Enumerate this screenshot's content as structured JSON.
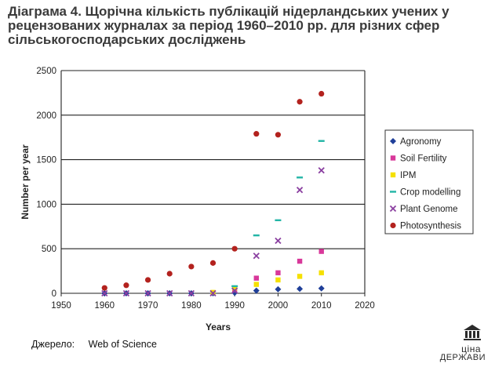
{
  "header": {
    "title_line1": "Діаграма 4. Щорічна кількість публікацій нідерландських учених  у",
    "title_line2": "рецензованих журналах за період 1960–2010 рр. для різних сфер",
    "title_line3": "сільськогосподарських досліджень"
  },
  "footer": {
    "source_label": "Джерело:",
    "source_value": "Web of Science"
  },
  "brand": {
    "word1": "ціна",
    "word2": "ДЕРЖАВИ",
    "icon": "building-icon"
  },
  "chart_data": {
    "type": "scatter",
    "xlabel": "Years",
    "ylabel": "Number per year",
    "xlim": [
      1950,
      2020
    ],
    "ylim": [
      0,
      2500
    ],
    "xticks": [
      1950,
      1960,
      1970,
      1980,
      1990,
      2000,
      2010,
      2020
    ],
    "yticks": [
      0,
      500,
      1000,
      1500,
      2000,
      2500
    ],
    "grid": "horizontal",
    "legend_position": "right",
    "series": [
      {
        "name": "Agronomy",
        "color": "#1f3f99",
        "marker": "diamond",
        "points": [
          [
            1960,
            0
          ],
          [
            1965,
            0
          ],
          [
            1970,
            0
          ],
          [
            1975,
            0
          ],
          [
            1980,
            0
          ],
          [
            1985,
            0
          ],
          [
            1990,
            5
          ],
          [
            1995,
            30
          ],
          [
            2000,
            45
          ],
          [
            2005,
            50
          ],
          [
            2010,
            55
          ]
        ]
      },
      {
        "name": "Soil Fertility",
        "color": "#d8389a",
        "marker": "square",
        "points": [
          [
            1990,
            40
          ],
          [
            1995,
            170
          ],
          [
            2000,
            230
          ],
          [
            2005,
            360
          ],
          [
            2010,
            470
          ]
        ]
      },
      {
        "name": "IPM",
        "color": "#f5e000",
        "marker": "square",
        "points": [
          [
            1985,
            10
          ],
          [
            1990,
            60
          ],
          [
            1995,
            100
          ],
          [
            2000,
            150
          ],
          [
            2005,
            190
          ],
          [
            2010,
            230
          ]
        ]
      },
      {
        "name": "Crop modelling",
        "color": "#22b5a6",
        "marker": "dash",
        "points": [
          [
            1990,
            80
          ],
          [
            1995,
            650
          ],
          [
            2000,
            820
          ],
          [
            2005,
            1300
          ],
          [
            2010,
            1710
          ]
        ]
      },
      {
        "name": "Plant Genome",
        "color": "#8a3fa0",
        "marker": "x",
        "points": [
          [
            1960,
            0
          ],
          [
            1965,
            0
          ],
          [
            1970,
            0
          ],
          [
            1975,
            0
          ],
          [
            1980,
            0
          ],
          [
            1985,
            0
          ],
          [
            1990,
            30
          ],
          [
            1995,
            420
          ],
          [
            2000,
            590
          ],
          [
            2005,
            1160
          ],
          [
            2010,
            1380
          ]
        ]
      },
      {
        "name": "Photosynthesis",
        "color": "#b3221e",
        "marker": "circle",
        "points": [
          [
            1960,
            60
          ],
          [
            1965,
            90
          ],
          [
            1970,
            150
          ],
          [
            1975,
            220
          ],
          [
            1980,
            300
          ],
          [
            1985,
            340
          ],
          [
            1990,
            500
          ],
          [
            1995,
            1790
          ],
          [
            2000,
            1780
          ],
          [
            2005,
            2150
          ],
          [
            2010,
            2240
          ]
        ]
      }
    ]
  }
}
